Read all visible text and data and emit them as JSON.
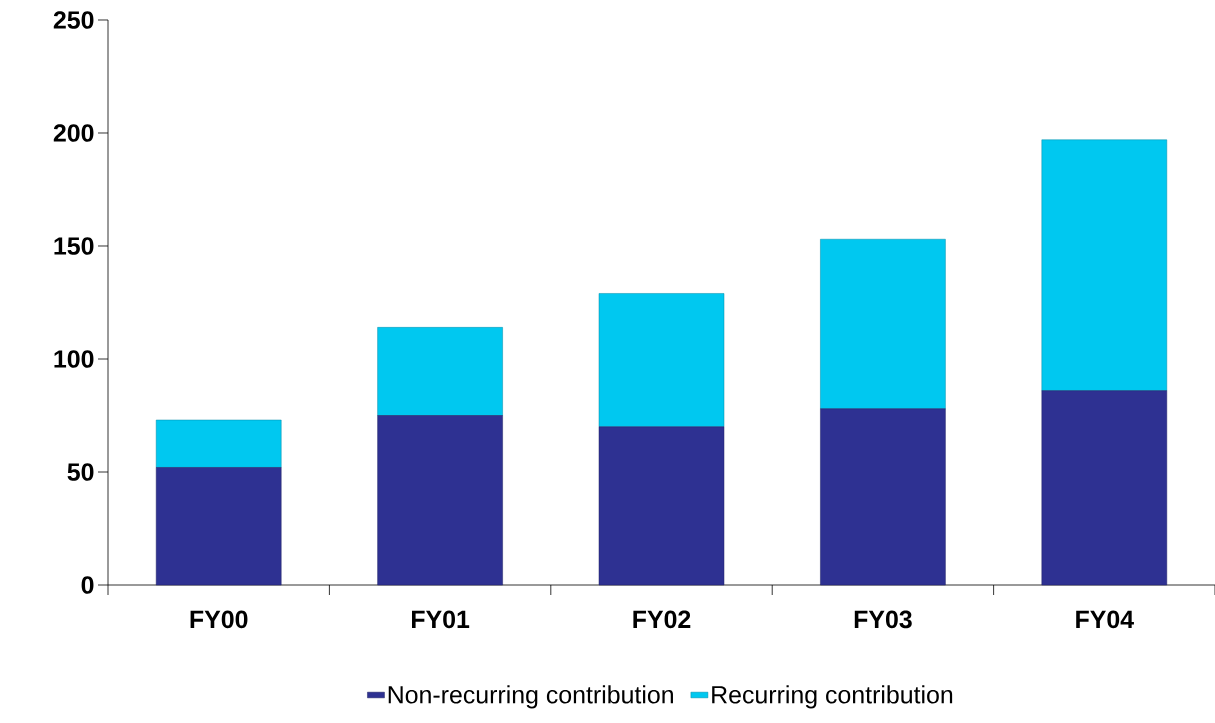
{
  "chart_data": {
    "type": "bar",
    "stacked": true,
    "categories": [
      "FY00",
      "FY01",
      "FY02",
      "FY03",
      "FY04"
    ],
    "series": [
      {
        "name": "Non-recurring contribution",
        "color": "#2e3192",
        "values": [
          52,
          75,
          70,
          78,
          86
        ]
      },
      {
        "name": "Recurring contribution",
        "color": "#00c8f0",
        "values": [
          21,
          39,
          59,
          75,
          111
        ]
      }
    ],
    "ylim": [
      0,
      250
    ],
    "yticks": [
      0,
      50,
      100,
      150,
      200,
      250
    ],
    "grid": false,
    "legend": "bottom"
  }
}
